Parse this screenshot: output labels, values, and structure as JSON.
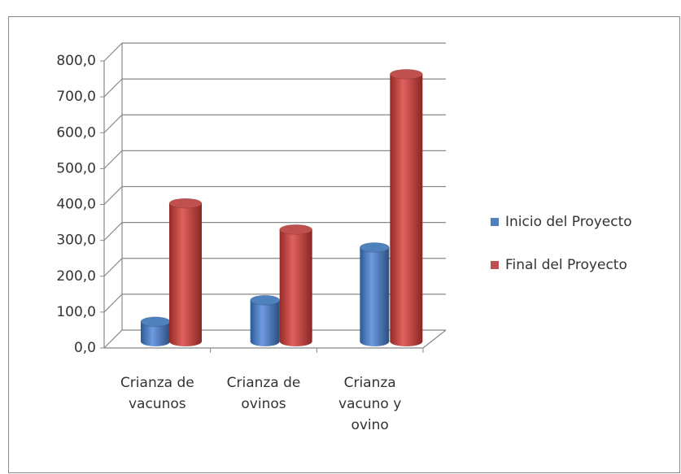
{
  "chart_data": {
    "type": "bar3d",
    "categories": [
      "Crianza de vacunos",
      "Crianza de ovinos",
      "Crianza vacuno y ovino"
    ],
    "series": [
      {
        "name": "Inicio del Proyecto",
        "color": "#4f81bd",
        "values": [
          55,
          115,
          262
        ]
      },
      {
        "name": "Final del Proyecto",
        "color": "#c0504d",
        "values": [
          385,
          312,
          745
        ]
      }
    ],
    "ylim": [
      0,
      800
    ],
    "yticks": [
      {
        "value": 0,
        "label": "0,0"
      },
      {
        "value": 100,
        "label": "100,0"
      },
      {
        "value": 200,
        "label": "200,0"
      },
      {
        "value": 300,
        "label": "300,0"
      },
      {
        "value": 400,
        "label": "400,0"
      },
      {
        "value": 500,
        "label": "500,0"
      },
      {
        "value": 600,
        "label": "600,0"
      },
      {
        "value": 700,
        "label": "700,0"
      },
      {
        "value": 800,
        "label": "800,0"
      }
    ],
    "grid": true,
    "legend": "right"
  }
}
